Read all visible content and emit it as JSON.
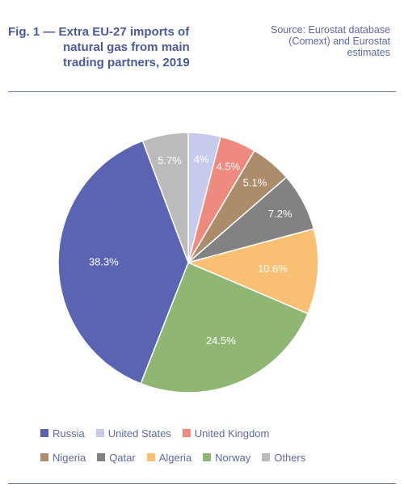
{
  "header": {
    "fig_number": "Fig. 1 —",
    "title_line1": "Extra EU-27 imports of",
    "title_line2": "natural gas from main",
    "title_line3": "trading partners, 2019",
    "source_line1": "Source: Eurostat database",
    "source_line2": "(Comext) and Eurostat",
    "source_line3": "estimates"
  },
  "chart_data": {
    "type": "pie",
    "title": "Extra EU-27 imports of natural gas from main trading partners, 2019",
    "unit": "%",
    "start": "top, clockwise",
    "slices": [
      {
        "name": "United States",
        "value": 4,
        "label": "4%",
        "color": "#c6cbee"
      },
      {
        "name": "United Kingdom",
        "value": 4.5,
        "label": "4.5%",
        "color": "#ee8a7e"
      },
      {
        "name": "Nigeria",
        "value": 5.1,
        "label": "5.1%",
        "color": "#ab8c6b"
      },
      {
        "name": "Qatar",
        "value": 7.2,
        "label": "7.2%",
        "color": "#828282"
      },
      {
        "name": "Algeria",
        "value": 10.6,
        "label": "10.6%",
        "color": "#f9bf72"
      },
      {
        "name": "Norway",
        "value": 24.5,
        "label": "24.5%",
        "color": "#8fb673"
      },
      {
        "name": "Russia",
        "value": 38.3,
        "label": "38.3%",
        "color": "#5a64b3"
      },
      {
        "name": "Others",
        "value": 5.7,
        "label": "5.7%",
        "color": "#bbbbbb"
      }
    ],
    "legend_placement": "bottom",
    "legend_order": [
      "Russia",
      "United States",
      "United Kingdom",
      "Nigeria",
      "Qatar",
      "Algeria",
      "Norway",
      "Others"
    ]
  }
}
